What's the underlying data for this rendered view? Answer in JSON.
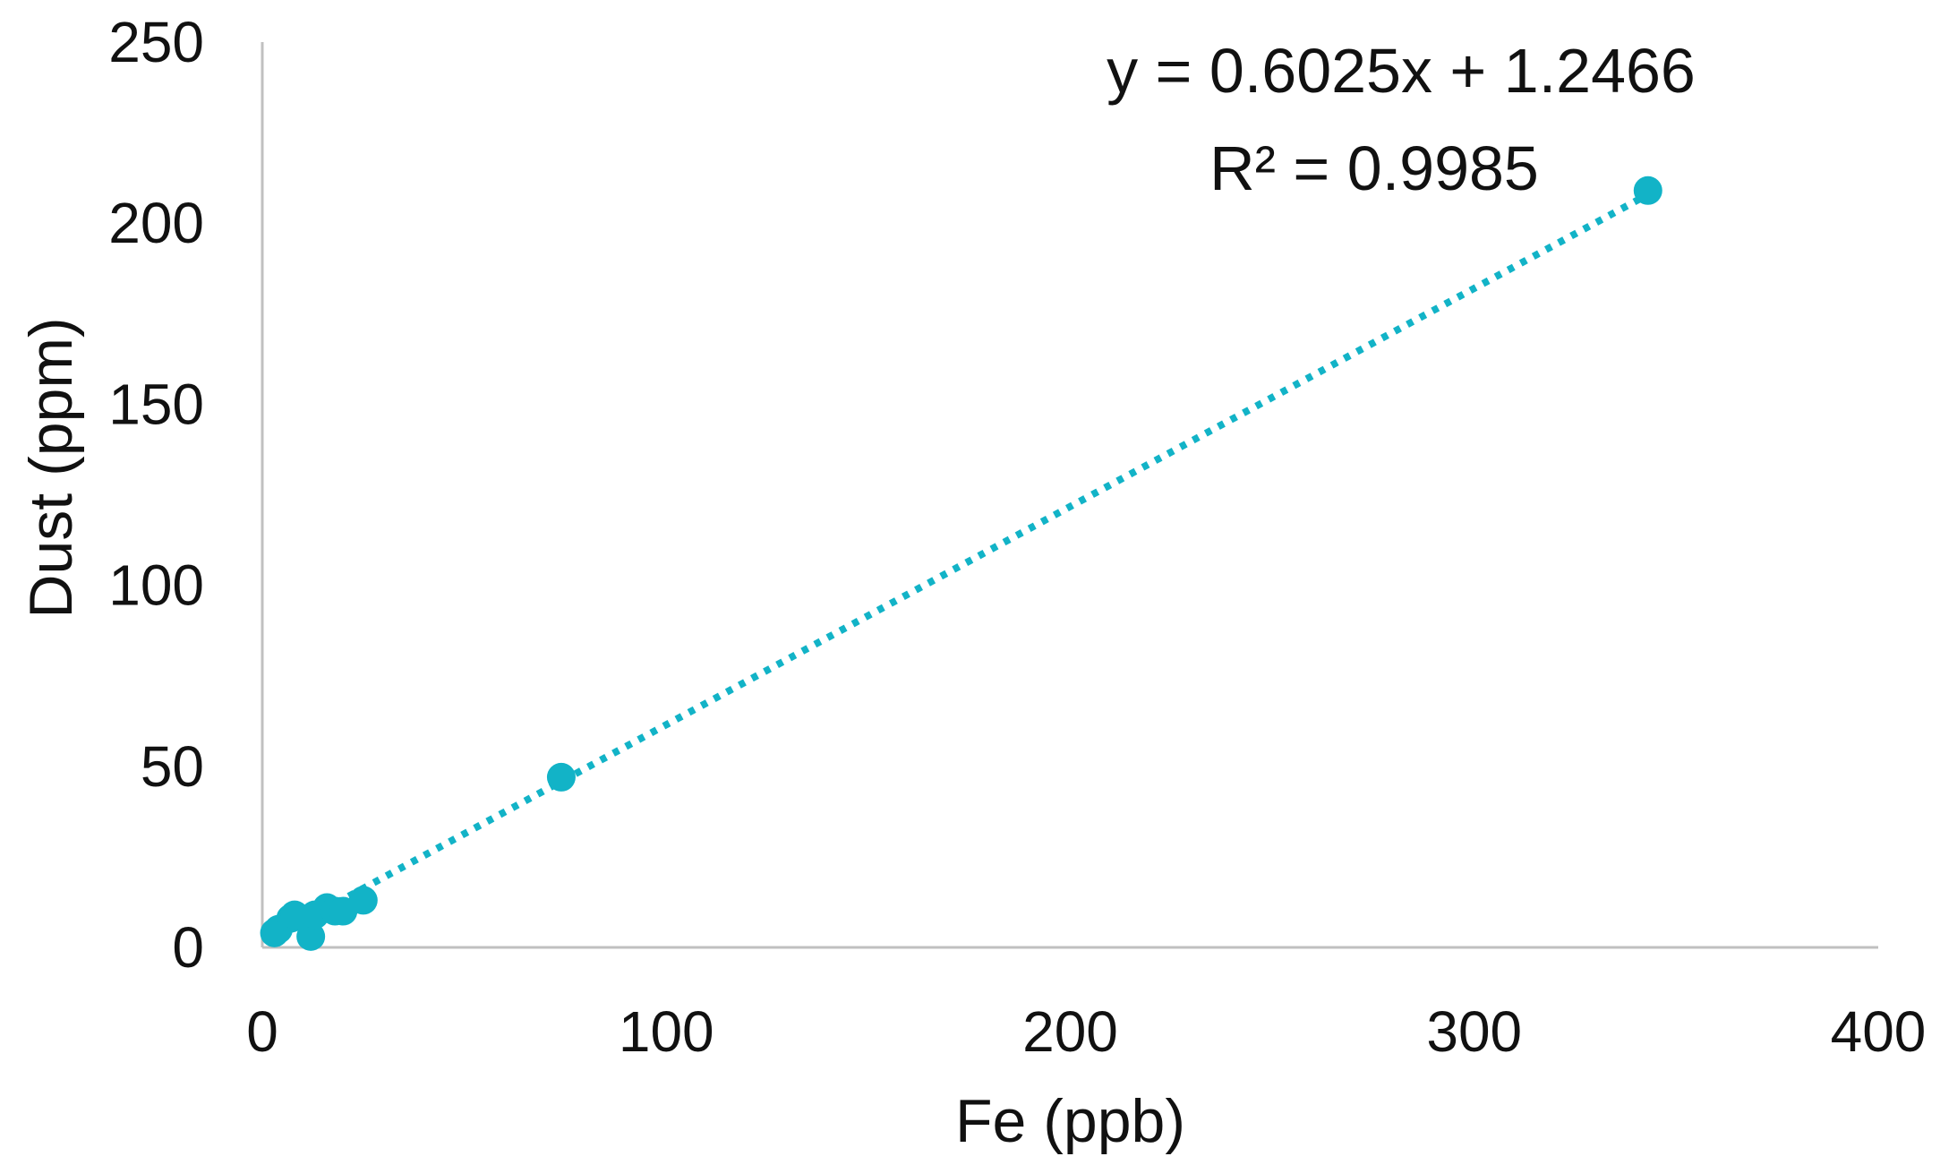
{
  "chart_data": {
    "type": "scatter",
    "xlabel": "Fe (ppb)",
    "ylabel": "Dust (ppm)",
    "xlim": [
      0,
      400
    ],
    "ylim": [
      0,
      250
    ],
    "xticks": [
      "0",
      "100",
      "200",
      "300",
      "400"
    ],
    "yticks": [
      "0",
      "50",
      "100",
      "150",
      "200",
      "250"
    ],
    "grid": false,
    "legend": "none",
    "series": [
      {
        "points": [
          {
            "x": 3,
            "y": 4
          },
          {
            "x": 4,
            "y": 5
          },
          {
            "x": 7,
            "y": 8
          },
          {
            "x": 8,
            "y": 9
          },
          {
            "x": 12,
            "y": 3
          },
          {
            "x": 13,
            "y": 9
          },
          {
            "x": 16,
            "y": 11
          },
          {
            "x": 18,
            "y": 10
          },
          {
            "x": 20,
            "y": 10
          },
          {
            "x": 25,
            "y": 13
          },
          {
            "x": 74,
            "y": 47
          },
          {
            "x": 343,
            "y": 209
          }
        ],
        "color": "#12b3c7"
      }
    ],
    "trendline": {
      "slope": 0.6025,
      "intercept": 1.2466,
      "x_range": [
        12,
        343
      ],
      "style": "dotted",
      "color": "#12b3c7"
    },
    "annotations": {
      "equation": "y = 0.6025x + 1.2466",
      "r_squared": "R² = 0.9985"
    }
  }
}
